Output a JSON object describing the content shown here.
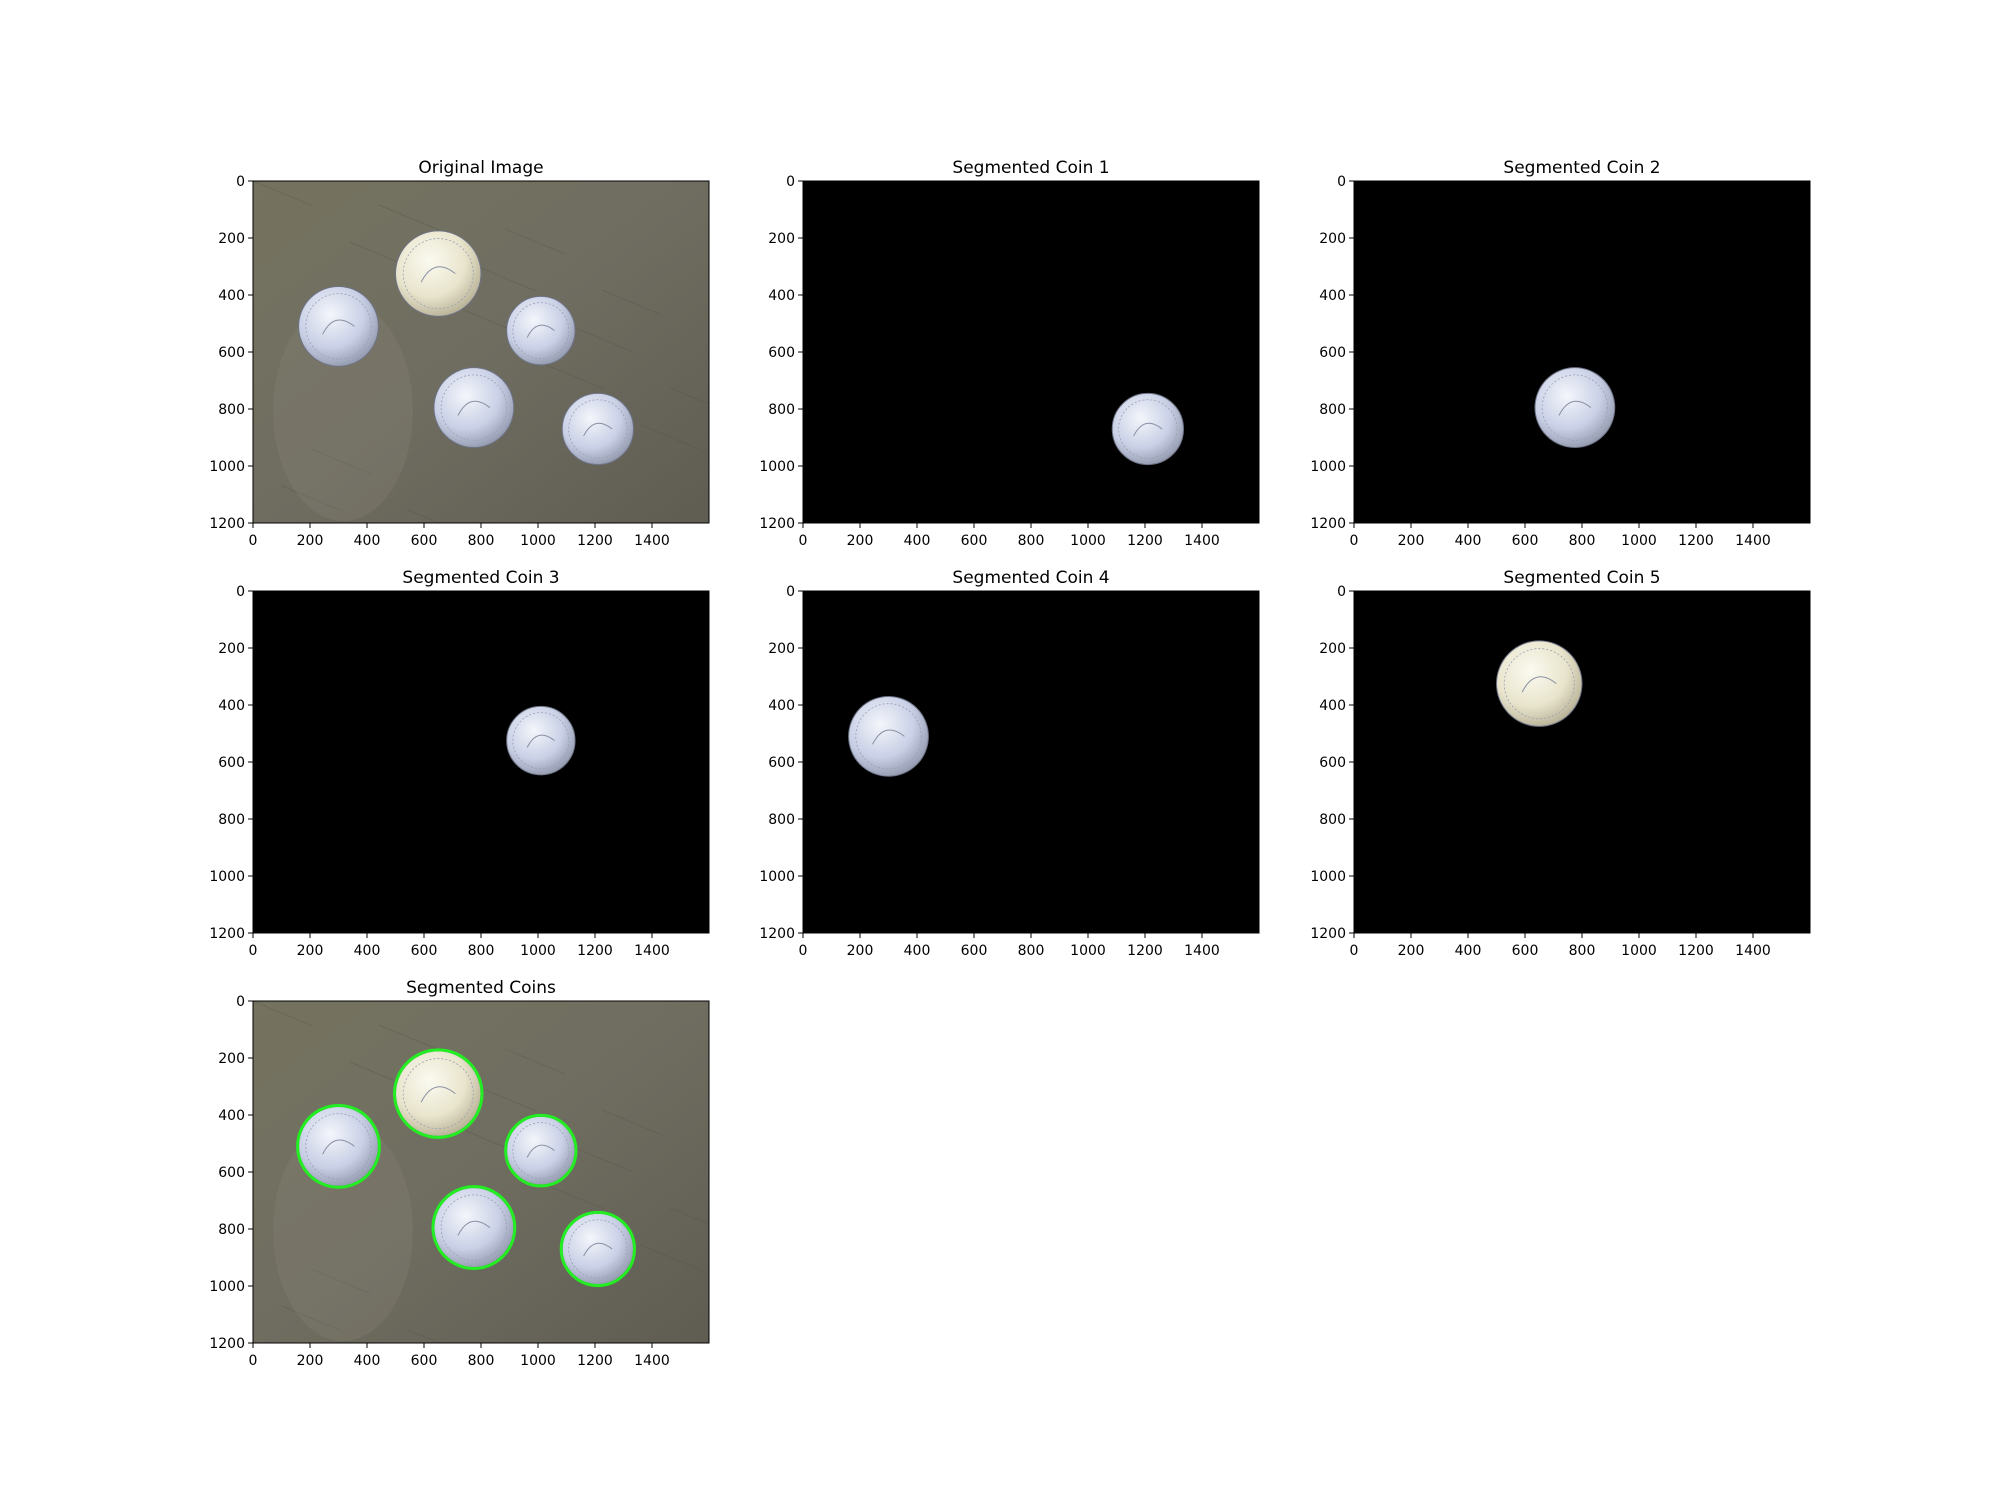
{
  "figure": {
    "panels": [
      {
        "title": "Original Image",
        "kind": "photo",
        "coins": [
          {
            "id": 1,
            "cx": 1210,
            "cy": 870,
            "r": 125,
            "tone": "silver"
          },
          {
            "id": 2,
            "cx": 775,
            "cy": 795,
            "r": 140,
            "tone": "silver"
          },
          {
            "id": 3,
            "cx": 1010,
            "cy": 525,
            "r": 120,
            "tone": "silver"
          },
          {
            "id": 4,
            "cx": 300,
            "cy": 510,
            "r": 140,
            "tone": "silver"
          },
          {
            "id": 5,
            "cx": 650,
            "cy": 325,
            "r": 150,
            "tone": "gold"
          }
        ]
      },
      {
        "title": "Segmented Coin 1",
        "kind": "mask",
        "show": [
          1
        ]
      },
      {
        "title": "Segmented Coin 2",
        "kind": "mask",
        "show": [
          2
        ]
      },
      {
        "title": "Segmented Coin 3",
        "kind": "mask",
        "show": [
          3
        ]
      },
      {
        "title": "Segmented Coin 4",
        "kind": "mask",
        "show": [
          4
        ]
      },
      {
        "title": "Segmented Coin 5",
        "kind": "mask",
        "show": [
          5
        ]
      },
      {
        "title": "Segmented Coins",
        "kind": "photo-outlined"
      }
    ],
    "x_ticks": [
      "0",
      "200",
      "400",
      "600",
      "800",
      "1000",
      "1200",
      "1400"
    ],
    "y_ticks": [
      "0",
      "200",
      "400",
      "600",
      "800",
      "1000",
      "1200"
    ],
    "colors": {
      "background": "#6d6b5e",
      "mask": "#000000",
      "contour": "#22ee22",
      "silver": "#c9d0e6",
      "gold": "#e8e4cc"
    }
  }
}
